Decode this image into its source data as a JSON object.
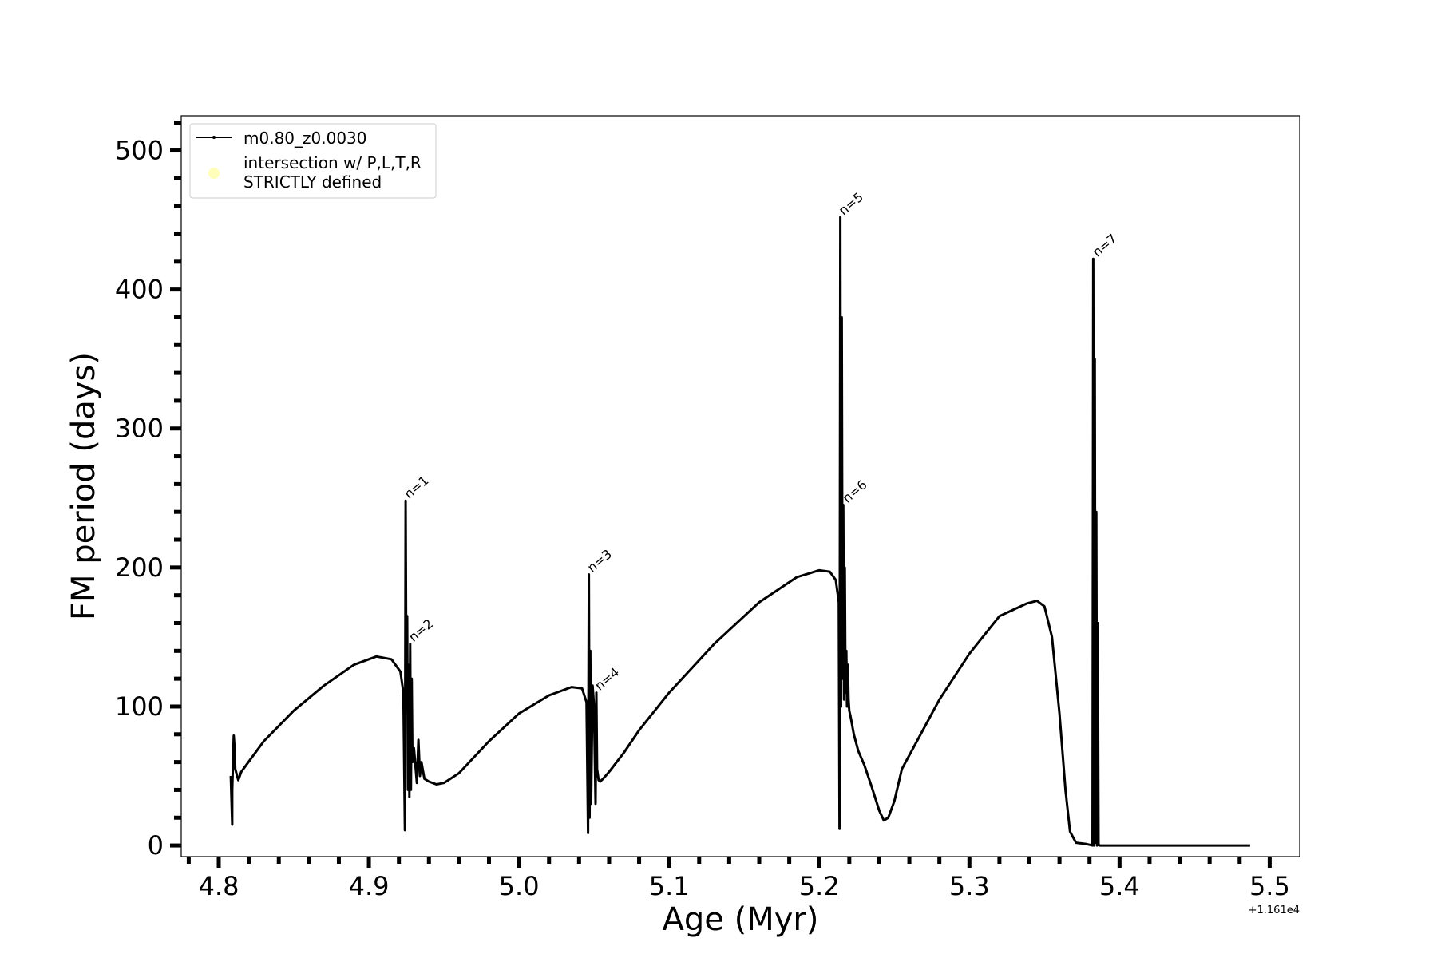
{
  "chart_data": {
    "type": "line",
    "xlabel": "Age (Myr)",
    "ylabel": "FM period (days)",
    "x_offset_label": "+1.161e4",
    "xlim": [
      4.775,
      5.52
    ],
    "ylim": [
      -8,
      525
    ],
    "x_ticks": [
      "4.8",
      "4.9",
      "5.0",
      "5.1",
      "5.2",
      "5.3",
      "5.4",
      "5.5"
    ],
    "x_tick_values": [
      4.8,
      4.9,
      5.0,
      5.1,
      5.2,
      5.3,
      5.4,
      5.5
    ],
    "y_ticks": [
      "0",
      "100",
      "200",
      "300",
      "400",
      "500"
    ],
    "y_tick_values": [
      0,
      100,
      200,
      300,
      400,
      500
    ],
    "legend": {
      "placement": "upper-left",
      "entries": [
        {
          "label": "m0.80_z0.0030",
          "color": "#000000",
          "marker": "line"
        },
        {
          "label_lines": [
            "intersection w/ P,L,T,R",
            "STRICTLY defined"
          ],
          "color": "#ffffb3",
          "marker": "circle"
        }
      ]
    },
    "series": [
      {
        "name": "m0.80_z0.0030",
        "color": "#000000",
        "x": [
          4.808,
          4.809,
          4.809,
          4.81,
          4.8105,
          4.811,
          4.813,
          4.815,
          4.83,
          4.85,
          4.87,
          4.89,
          4.905,
          4.915,
          4.921,
          4.923,
          4.924,
          4.9245,
          4.925,
          4.9255,
          4.926,
          4.9265,
          4.927,
          4.9275,
          4.928,
          4.9285,
          4.929,
          4.93,
          4.932,
          4.933,
          4.934,
          4.935,
          4.937,
          4.94,
          4.945,
          4.95,
          4.96,
          4.98,
          5.0,
          5.02,
          5.035,
          5.042,
          5.045,
          5.046,
          5.0465,
          5.047,
          5.0475,
          5.048,
          5.049,
          5.05,
          5.051,
          5.0515,
          5.052,
          5.053,
          5.054,
          5.056,
          5.06,
          5.07,
          5.08,
          5.1,
          5.13,
          5.16,
          5.185,
          5.2,
          5.207,
          5.211,
          5.213,
          5.2135,
          5.214,
          5.2145,
          5.215,
          5.2155,
          5.216,
          5.2165,
          5.217,
          5.2175,
          5.218,
          5.2185,
          5.219,
          5.2195,
          5.22,
          5.221,
          5.223,
          5.226,
          5.23,
          5.235,
          5.24,
          5.243,
          5.246,
          5.25,
          5.255,
          5.265,
          5.28,
          5.3,
          5.32,
          5.338,
          5.345,
          5.35,
          5.355,
          5.36,
          5.364,
          5.367,
          5.371,
          5.378,
          5.382,
          5.3825,
          5.383,
          5.3835,
          5.384,
          5.3845,
          5.385,
          5.3855,
          5.386,
          5.3865,
          5.387,
          5.39,
          5.42,
          5.46,
          5.487
        ],
        "y": [
          50,
          15,
          40,
          79,
          70,
          55,
          47,
          53,
          75,
          97,
          115,
          130,
          136,
          134,
          125,
          110,
          11,
          248,
          100,
          165,
          40,
          130,
          35,
          145,
          40,
          120,
          60,
          70,
          45,
          76,
          50,
          60,
          48,
          46,
          44,
          45,
          52,
          75,
          95,
          108,
          114,
          113,
          103,
          9,
          195,
          20,
          140,
          30,
          115,
          100,
          30,
          110,
          55,
          47,
          46,
          48,
          53,
          67,
          83,
          110,
          145,
          175,
          193,
          198,
          197,
          191,
          175,
          12,
          452,
          100,
          380,
          120,
          245,
          105,
          200,
          110,
          140,
          100,
          130,
          105,
          97,
          92,
          80,
          68,
          58,
          42,
          25,
          18,
          20,
          32,
          55,
          75,
          105,
          138,
          165,
          174,
          176,
          172,
          150,
          95,
          40,
          10,
          2,
          1,
          0,
          422,
          0,
          350,
          2,
          240,
          0,
          160,
          1,
          0,
          0,
          0,
          0,
          0,
          0
        ]
      }
    ],
    "annotations": [
      {
        "text": "n=1",
        "x": 4.9245,
        "y": 248
      },
      {
        "text": "n=2",
        "x": 4.9275,
        "y": 145
      },
      {
        "text": "n=3",
        "x": 5.0465,
        "y": 195
      },
      {
        "text": "n=4",
        "x": 5.0515,
        "y": 110
      },
      {
        "text": "n=5",
        "x": 5.214,
        "y": 452
      },
      {
        "text": "n=6",
        "x": 5.2165,
        "y": 245
      },
      {
        "text": "n=7",
        "x": 5.383,
        "y": 422
      }
    ],
    "grid": false
  }
}
